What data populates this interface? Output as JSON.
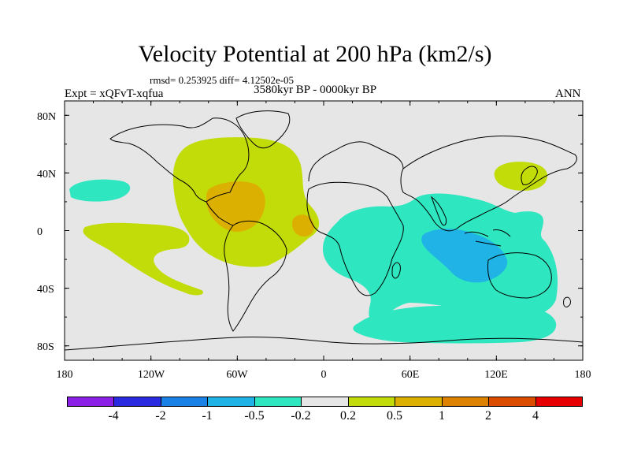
{
  "title": "Velocity Potential at 200 hPa (km2/s)",
  "stats": "rmsd= 0.253925 diff= 4.12502e-05",
  "experiment": "Expt = xQFvT-xqfua",
  "period": "3580kyr BP - 0000kyr BP",
  "season": "ANN",
  "map": {
    "projection": "cylindrical-equidistant",
    "lon_range": [
      -180,
      180
    ],
    "lat_range": [
      -90,
      90
    ],
    "x_ticks": [
      "180",
      "120W",
      "60W",
      "0",
      "60E",
      "120E",
      "180"
    ],
    "y_ticks": [
      "80N",
      "40N",
      "0",
      "40S",
      "80S"
    ],
    "background_color": "#e6e6e6",
    "coastline_color": "#000000"
  },
  "colorbar": {
    "labels": [
      "-4",
      "-2",
      "-1",
      "-0.5",
      "-0.2",
      "0.2",
      "0.5",
      "1",
      "2",
      "4"
    ],
    "colors": [
      "#8a20e6",
      "#2a2ae0",
      "#1a82e6",
      "#20b4e6",
      "#2ee6c0",
      "#e6e6e6",
      "#c2dc0a",
      "#dcb000",
      "#dc8200",
      "#dc4c00",
      "#e60000"
    ]
  },
  "regions": [
    {
      "name": "north-atlantic-americas",
      "level": "0.2 to 0.5",
      "color": "#c2dc0a"
    },
    {
      "name": "caribbean",
      "level": "0.5 to 1",
      "color": "#dcb000"
    },
    {
      "name": "west-africa-coast",
      "level": "0.5 to 1",
      "color": "#dcb000"
    },
    {
      "name": "east-pacific",
      "level": "0.2 to 0.5",
      "color": "#c2dc0a"
    },
    {
      "name": "japan",
      "level": "0.2 to 0.5",
      "color": "#c2dc0a"
    },
    {
      "name": "north-pacific",
      "level": "-0.5 to -0.2",
      "color": "#2ee6c0"
    },
    {
      "name": "indian-ocean",
      "level": "-0.5 to -0.2",
      "color": "#2ee6c0"
    },
    {
      "name": "maritime-continent",
      "level": "-1 to -0.5",
      "color": "#20b4e6"
    },
    {
      "name": "southern-ocean",
      "level": "-0.5 to -0.2",
      "color": "#2ee6c0"
    }
  ]
}
